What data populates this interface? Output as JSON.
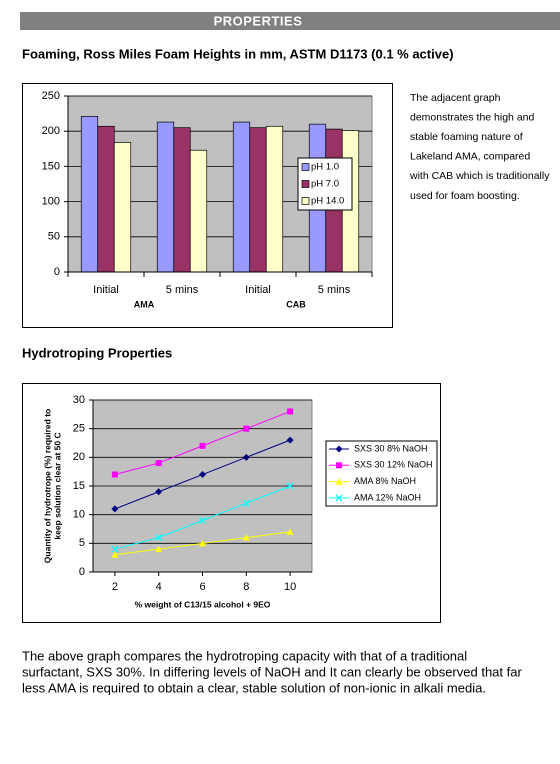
{
  "header": {
    "title": "PROPERTIES"
  },
  "sections": [
    {
      "heading": "Foaming, Ross Miles Foam Heights in mm, ASTM D1173 (0.1 % active)",
      "side_text": [
        "The adjacent graph",
        "demonstrates the high and",
        "stable foaming nature of",
        "Lakeland AMA, compared",
        "with CAB which is traditionally",
        "used for foam boosting."
      ]
    },
    {
      "heading": "Hydrotroping Properties",
      "text": [
        "The above graph compares the hydrotroping capacity with that of a traditional",
        "surfactant, SXS 30%. In differing levels of NaOH and It can clearly be observed that far",
        "less AMA is required to obtain a clear, stable solution of non-ionic in alkali media."
      ]
    }
  ],
  "chart_data": [
    {
      "type": "bar",
      "categories": [
        "Initial",
        "5 mins",
        "Initial",
        "5 mins"
      ],
      "group_labels": [
        "AMA",
        "CAB"
      ],
      "series": [
        {
          "name": "pH 1.0",
          "color": "#9999ff",
          "values": [
            221,
            213,
            213,
            210
          ]
        },
        {
          "name": "pH 7.0",
          "color": "#993366",
          "values": [
            207,
            205,
            205,
            203
          ]
        },
        {
          "name": "pH 14.0",
          "color": "#ffffcc",
          "values": [
            184,
            173,
            207,
            201
          ]
        }
      ],
      "ylim": [
        0,
        250
      ],
      "yticks": [
        0,
        50,
        100,
        150,
        200,
        250
      ],
      "grid": true,
      "legend": "right"
    },
    {
      "type": "line",
      "x": [
        2,
        4,
        6,
        8,
        10
      ],
      "xlim": [
        1,
        11
      ],
      "xticks": [
        2,
        4,
        6,
        8,
        10
      ],
      "xlabel": "% weight of C13/15 alcohol + 9EO",
      "ylabel": [
        "Quantity of hydrotrope (%) required to",
        "keep solution clear at 50 C"
      ],
      "series": [
        {
          "name": "SXS 30 8% NaOH",
          "color": "#000080",
          "marker": "diamond",
          "values": [
            11,
            14,
            17,
            20,
            23
          ]
        },
        {
          "name": "SXS 30 12% NaOH",
          "color": "#ff00ff",
          "marker": "square",
          "values": [
            17,
            19,
            22,
            25,
            28
          ]
        },
        {
          "name": "AMA 8% NaOH",
          "color": "#ffff00",
          "marker": "triangle",
          "values": [
            3,
            4,
            5,
            6,
            7
          ]
        },
        {
          "name": "AMA 12% NaOH",
          "color": "#00ffff",
          "marker": "x",
          "values": [
            4,
            6,
            9,
            12,
            15
          ]
        }
      ],
      "ylim": [
        0,
        30
      ],
      "yticks": [
        0,
        5,
        10,
        15,
        20,
        25,
        30
      ],
      "grid": true,
      "legend": "right"
    }
  ]
}
